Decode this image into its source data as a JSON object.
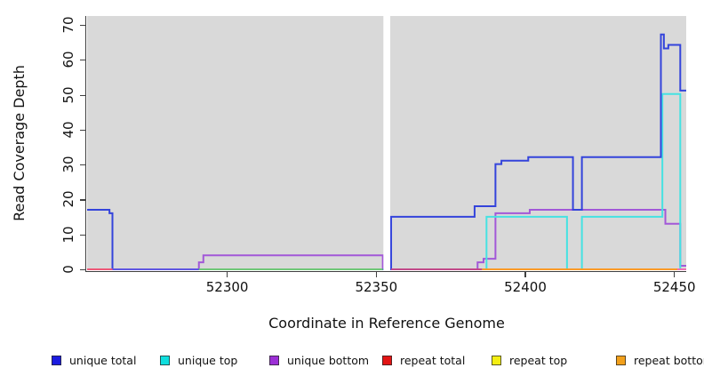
{
  "chart_data": {
    "type": "line",
    "subtype": "step-coverage",
    "title": "",
    "xlabel": "Coordinate in Reference Genome",
    "ylabel": "Read Coverage Depth",
    "xlim": [
      52253,
      52454
    ],
    "ylim": [
      0,
      72.5
    ],
    "grid": false,
    "plot_bg": "#d9d9d9",
    "x_ticks": [
      52300,
      52350,
      52400,
      52450
    ],
    "x_tick_labels": [
      "52300",
      "52350",
      "52400",
      "52450"
    ],
    "y_ticks": [
      0,
      10,
      20,
      30,
      40,
      50,
      60,
      70
    ],
    "y_tick_labels": [
      "0",
      "10",
      "20",
      "30",
      "40",
      "50",
      "60",
      "70"
    ],
    "gap_band": {
      "from": 52352.4,
      "to": 52354.7,
      "color": "#ffffff"
    },
    "series": [
      {
        "name": "repeat total",
        "color": "#e03050",
        "steps": [
          [
            52253,
            0
          ]
        ]
      },
      {
        "name": "repeat top",
        "color": "#f0e84a",
        "steps": [
          [
            52253,
            0
          ]
        ]
      },
      {
        "name": "repeat bottom",
        "color": "#fb9b28",
        "end": 52451,
        "steps": [
          [
            52386,
            0
          ]
        ]
      },
      {
        "name": "unique bottom",
        "color": "#a258d8",
        "steps": [
          [
            52253,
            0
          ],
          [
            52290.5,
            2
          ],
          [
            52292,
            4
          ],
          [
            52352.2,
            0
          ],
          [
            52384,
            2
          ],
          [
            52386,
            3
          ],
          [
            52390,
            16
          ],
          [
            52401.5,
            17
          ],
          [
            52447,
            13
          ],
          [
            52452,
            1
          ]
        ]
      },
      {
        "name": "unique top",
        "color": "#45e2e2",
        "steps": [
          [
            52253,
            0
          ],
          [
            52387,
            15
          ],
          [
            52414,
            0
          ],
          [
            52419,
            15
          ],
          [
            52446,
            50
          ],
          [
            52452,
            0
          ]
        ]
      },
      {
        "name": "unique total",
        "color": "#3444db",
        "steps": [
          [
            52253,
            17
          ],
          [
            52260.5,
            16
          ],
          [
            52261.5,
            0
          ],
          [
            52355,
            15
          ],
          [
            52383,
            18
          ],
          [
            52390,
            30
          ],
          [
            52392,
            31
          ],
          [
            52401,
            32
          ],
          [
            52416,
            17
          ],
          [
            52419,
            32
          ],
          [
            52445.5,
            67
          ],
          [
            52446.5,
            63
          ],
          [
            52448,
            64
          ],
          [
            52452,
            51
          ]
        ]
      }
    ],
    "baseline_segments": [
      {
        "from": 52253,
        "to": 52261.5,
        "color": "#ef5878"
      },
      {
        "from": 52261.5,
        "to": 52290.5,
        "color": "#6057e2"
      },
      {
        "from": 52290.5,
        "to": 52352.2,
        "color": "#6fc878"
      },
      {
        "from": 52355,
        "to": 52385.5,
        "color": "#c2498a"
      },
      {
        "from": 52385.5,
        "to": 52451,
        "color": "#fb9b28"
      },
      {
        "from": 52451,
        "to": 52454,
        "color": "#ee70b4"
      }
    ]
  },
  "axes": {
    "x_title": "Coordinate in Reference Genome",
    "y_title": "Read Coverage Depth"
  },
  "legend": {
    "items": [
      {
        "label": "unique total",
        "color": "#1b1be0"
      },
      {
        "label": "unique top",
        "color": "#0fdede"
      },
      {
        "label": "unique bottom",
        "color": "#9c2fd6"
      },
      {
        "label": "repeat total",
        "color": "#e31414"
      },
      {
        "label": "repeat top",
        "color": "#f4ee12"
      },
      {
        "label": "repeat bottom",
        "color": "#f2a01b"
      }
    ]
  }
}
